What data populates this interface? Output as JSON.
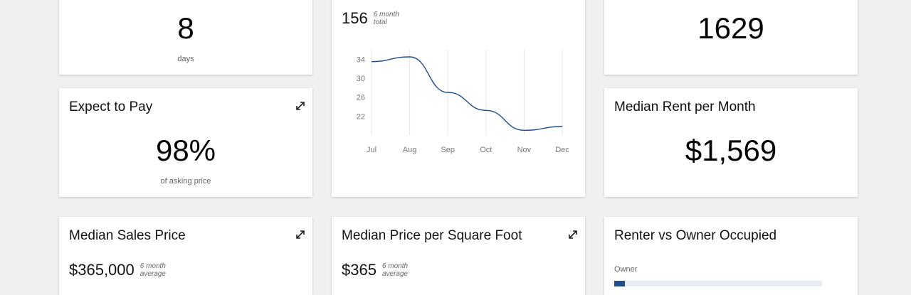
{
  "cards": {
    "days": {
      "value": "8",
      "caption": "days"
    },
    "chart": {
      "value": "156",
      "sub_line1": "6 month",
      "sub_line2": "total"
    },
    "count": {
      "value": "1629"
    },
    "expect_to_pay": {
      "title": "Expect to Pay",
      "value": "98%",
      "caption": "of asking price",
      "icon": "expand-icon"
    },
    "median_rent": {
      "title": "Median Rent per Month",
      "value": "$1,569"
    },
    "median_sales": {
      "title": "Median Sales Price",
      "value": "$365,000",
      "sub_line1": "6 month",
      "sub_line2": "average",
      "icon": "expand-icon"
    },
    "median_ppsf": {
      "title": "Median Price per Square Foot",
      "value": "$365",
      "sub_line1": "6 month",
      "sub_line2": "average",
      "icon": "expand-icon"
    },
    "renter_owner": {
      "title": "Renter vs Owner Occupied",
      "label": "Owner",
      "bar_fill_fraction": 0.05
    }
  },
  "chart_data": {
    "type": "line",
    "categories": [
      "Jul",
      "Aug",
      "Sep",
      "Oct",
      "Nov",
      "Dec"
    ],
    "series": [
      {
        "values": [
          33.5,
          34.5,
          27,
          23.2,
          19,
          19.8
        ]
      }
    ],
    "yticks": [
      22,
      26,
      30,
      34
    ],
    "ylim": [
      18,
      36
    ],
    "line_color": "#1f4e8c",
    "grid": true
  },
  "colors": {
    "accent": "#1f4e8c",
    "bar_track": "#e8ecf2"
  }
}
